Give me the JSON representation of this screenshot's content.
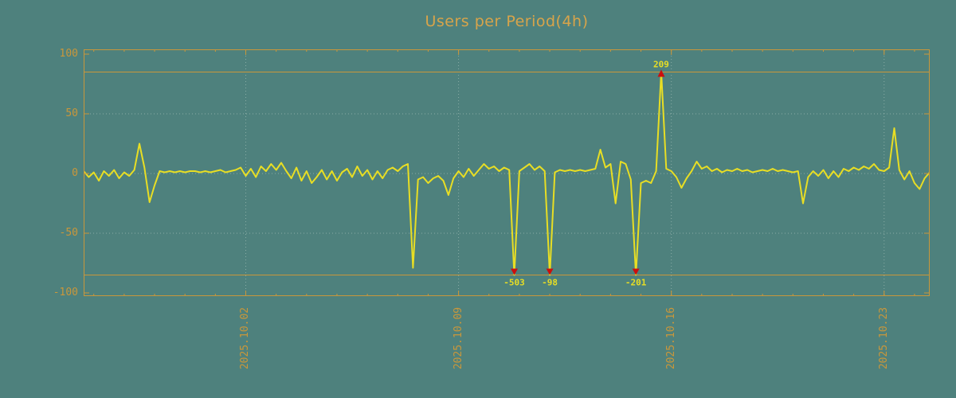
{
  "chart_data": {
    "type": "line",
    "title": "Users per Period(4h)",
    "x_tick_labels": [
      "2025.10.02",
      "2025.10.09",
      "2025.10.16",
      "2025.10.23"
    ],
    "x_tick_indices": [
      32,
      74,
      116,
      158
    ],
    "y_ticks": [
      100,
      50,
      0,
      -50,
      -100
    ],
    "grid_y": [
      50,
      0,
      -50
    ],
    "ylim": [
      -104,
      104
    ],
    "clip_level": 85,
    "values": [
      2,
      -3,
      1,
      -6,
      2,
      -2,
      3,
      -4,
      1,
      -2,
      3,
      25,
      5,
      -24,
      -10,
      2,
      1,
      2,
      1,
      2,
      1,
      2,
      2,
      1,
      2,
      1,
      2,
      3,
      1,
      2,
      3,
      5,
      -2,
      4,
      -3,
      6,
      2,
      8,
      3,
      9,
      2,
      -4,
      5,
      -6,
      2,
      -8,
      -3,
      3,
      -5,
      2,
      -6,
      1,
      4,
      -3,
      6,
      -2,
      3,
      -5,
      2,
      -4,
      3,
      5,
      2,
      6,
      8,
      -79,
      -5,
      -3,
      -8,
      -4,
      -2,
      -6,
      -18,
      -4,
      2,
      -3,
      4,
      -2,
      3,
      8,
      4,
      6,
      2,
      5,
      3,
      -503,
      2,
      5,
      8,
      3,
      6,
      2,
      -98,
      1,
      3,
      2,
      3,
      2,
      3,
      2,
      3,
      4,
      20,
      5,
      8,
      -25,
      10,
      8,
      -5,
      -201,
      -8,
      -6,
      -8,
      2,
      209,
      4,
      2,
      -3,
      -12,
      -4,
      2,
      10,
      4,
      6,
      2,
      4,
      1,
      3,
      2,
      4,
      2,
      3,
      1,
      2,
      3,
      2,
      4,
      2,
      3,
      2,
      1,
      2,
      -25,
      -3,
      2,
      -2,
      3,
      -4,
      2,
      -3,
      4,
      2,
      5,
      3,
      6,
      4,
      8,
      3,
      2,
      5,
      38,
      3,
      -5,
      2,
      -8,
      -13,
      -4,
      1
    ],
    "markers": [
      {
        "i": 85,
        "label": "-503",
        "dir": "down"
      },
      {
        "i": 92,
        "label": "-98",
        "dir": "down"
      },
      {
        "i": 109,
        "label": "-201",
        "dir": "down"
      },
      {
        "i": 114,
        "label": "209",
        "dir": "up"
      }
    ],
    "colors": {
      "background": "#4e817d",
      "line": "#e8de24",
      "axis": "#c9973b",
      "title": "#d8a44a",
      "grid": "#a3bfb7",
      "marker": "#cc0e0e",
      "marker_label": "#e8de24"
    }
  }
}
